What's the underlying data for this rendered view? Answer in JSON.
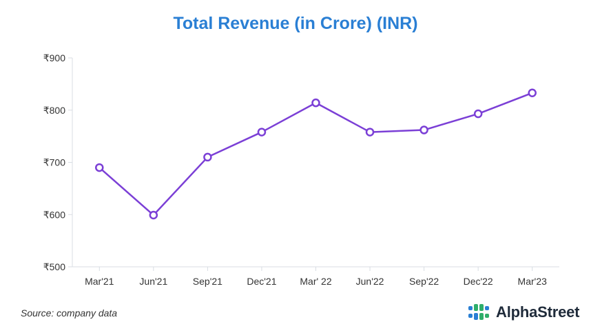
{
  "chart_data": {
    "type": "line",
    "title": "Total Revenue (in Crore) (INR)",
    "categories": [
      "Mar'21",
      "Jun'21",
      "Sep'21",
      "Dec'21",
      "Mar' 22",
      "Jun'22",
      "Sep'22",
      "Dec'22",
      "Mar'23"
    ],
    "series": [
      {
        "values": [
          690,
          599,
          710,
          758,
          814,
          758,
          762,
          793,
          833
        ]
      }
    ],
    "yticks": [
      "₹500",
      "₹600",
      "₹700",
      "₹800",
      "₹900"
    ],
    "ylim": [
      500,
      900
    ],
    "grid": false,
    "line_color": "#7b3fd6",
    "axis_color": "#d8dde3"
  },
  "footer": {
    "source": "Source: company data",
    "brand": "AlphaStreet",
    "brand_icon": "alphastreet-logo-icon",
    "brand_colors": [
      "#2a7fd4",
      "#2fae6b",
      "#1f2b3a"
    ]
  }
}
